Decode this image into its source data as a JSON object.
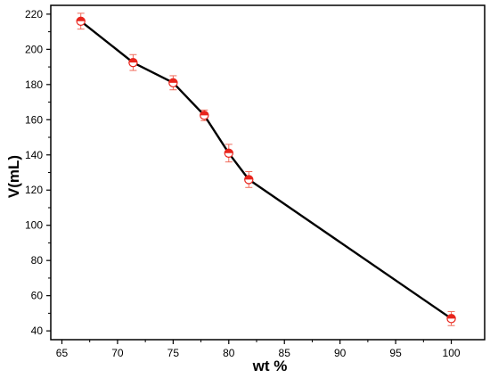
{
  "chart_data": {
    "type": "line",
    "title": "",
    "xlabel": "wt %",
    "ylabel": "V(mL)",
    "xlim": [
      64,
      103
    ],
    "ylim": [
      35,
      225
    ],
    "x_ticks": [
      65,
      70,
      75,
      80,
      85,
      90,
      95,
      100
    ],
    "y_ticks": [
      40,
      60,
      80,
      100,
      120,
      140,
      160,
      180,
      200,
      220
    ],
    "grid": false,
    "series": [
      {
        "x": [
          66.7,
          71.4,
          75.0,
          77.8,
          80.0,
          81.8,
          100
        ],
        "values": [
          216,
          192.5,
          181,
          162.5,
          141,
          126,
          47
        ],
        "error": [
          4.5,
          4.5,
          4,
          3,
          5,
          4.5,
          4
        ],
        "line_color": "#000000",
        "marker_color": "#e8241c",
        "error_color": "#f06a5a"
      }
    ]
  }
}
